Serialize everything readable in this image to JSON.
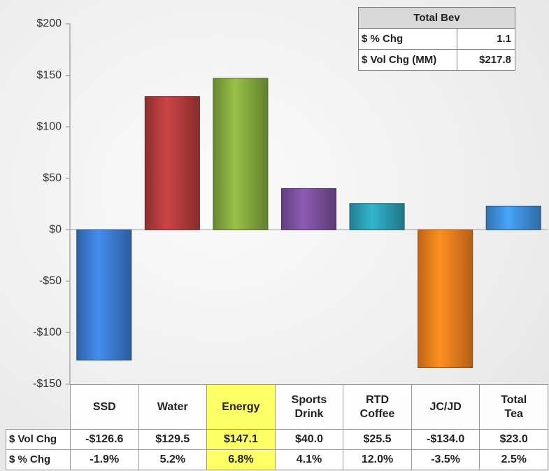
{
  "chart_data": {
    "type": "bar",
    "categories": [
      "SSD",
      "Water",
      "Energy",
      "Sports Drink",
      "RTD Coffee",
      "JC/JD",
      "Total Tea"
    ],
    "values": [
      -126.6,
      129.5,
      147.1,
      40.0,
      25.5,
      -134.0,
      23.0
    ],
    "value_labels": [
      "-$126.6",
      "$129.5",
      "$147.1",
      "$40.0",
      "$25.5",
      "-$134.0",
      "$23.0"
    ],
    "colors": [
      "#3b7bd0",
      "#b23b3b",
      "#84a93d",
      "#7b4f9c",
      "#2b9db3",
      "#f07d1b",
      "#3f8fd9"
    ],
    "pct_values": [
      -1.9,
      5.2,
      6.8,
      4.1,
      12.0,
      -3.5,
      2.5
    ],
    "pct_labels": [
      "-1.9%",
      "5.2%",
      "6.8%",
      "4.1%",
      "12.0%",
      "-3.5%",
      "2.5%"
    ],
    "row_labels": [
      "$ Vol Chg",
      "$ % Chg"
    ],
    "highlight": {
      "category": "Energy",
      "color": "#ffff66"
    },
    "ylim": [
      -150,
      200
    ],
    "yticks": [
      {
        "value": -150,
        "label": "-$150"
      },
      {
        "value": -100,
        "label": "-$100"
      },
      {
        "value": -50,
        "label": "-$50"
      },
      {
        "value": 0,
        "label": "$0"
      },
      {
        "value": 50,
        "label": "$50"
      },
      {
        "value": 100,
        "label": "$100"
      },
      {
        "value": 150,
        "label": "$150"
      },
      {
        "value": 200,
        "label": "$200"
      }
    ],
    "inset": {
      "title": "Total Bev",
      "rows": [
        {
          "label": "$ % Chg",
          "value": 1.1
        },
        {
          "label": "$ Vol Chg (MM)",
          "value": 217.8,
          "value_label": "$217.8"
        }
      ]
    }
  }
}
